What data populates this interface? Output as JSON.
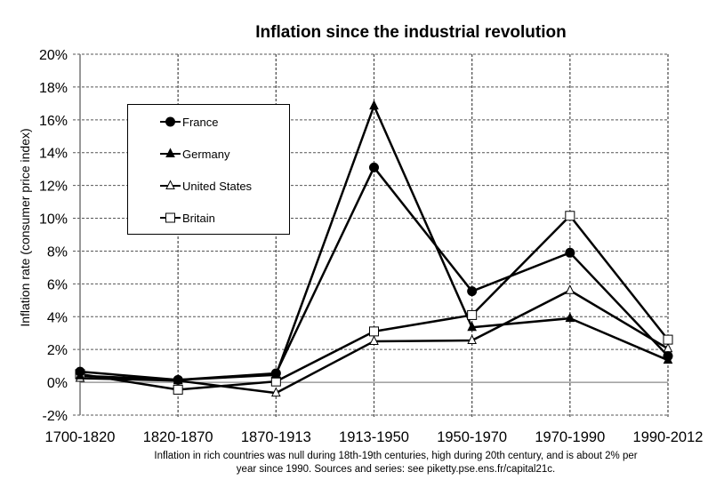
{
  "chart_data": {
    "type": "line",
    "title": "Inflation since the industrial revolution",
    "xlabel": "",
    "ylabel": "Inflation rate (consumer price index)",
    "categories": [
      "1700-1820",
      "1820-1870",
      "1870-1913",
      "1913-1950",
      "1950-1970",
      "1970-1990",
      "1990-2012"
    ],
    "ylim": [
      -2,
      20
    ],
    "yticks": [
      -2,
      0,
      2,
      4,
      6,
      8,
      10,
      12,
      14,
      16,
      18,
      20
    ],
    "ytick_labels": [
      "-2%",
      "0%",
      "2%",
      "4%",
      "6%",
      "8%",
      "10%",
      "12%",
      "14%",
      "16%",
      "18%",
      "20%"
    ],
    "grid": true,
    "legend_position": "top-left",
    "series": [
      {
        "name": "France",
        "marker": "circle-filled",
        "values": [
          0.65,
          0.15,
          0.55,
          13.1,
          5.55,
          7.9,
          1.6
        ]
      },
      {
        "name": "Germany",
        "marker": "triangle-filled",
        "values": [
          0.4,
          0.15,
          0.45,
          16.85,
          3.35,
          3.9,
          1.35
        ]
      },
      {
        "name": "United States",
        "marker": "triangle-open",
        "values": [
          0.25,
          0.1,
          -0.65,
          2.5,
          2.55,
          5.6,
          2.05
        ]
      },
      {
        "name": "Britain",
        "marker": "square-open",
        "values": [
          0.5,
          -0.45,
          0.05,
          3.1,
          4.1,
          10.15,
          2.6
        ]
      }
    ]
  },
  "caption_line1": "Inflation in rich countries was null during 18th-19th centuries, high during 20th century, and is about 2% per",
  "caption_line2": "year since 1990. Sources and series: see piketty.pse.ens.fr/capital21c."
}
